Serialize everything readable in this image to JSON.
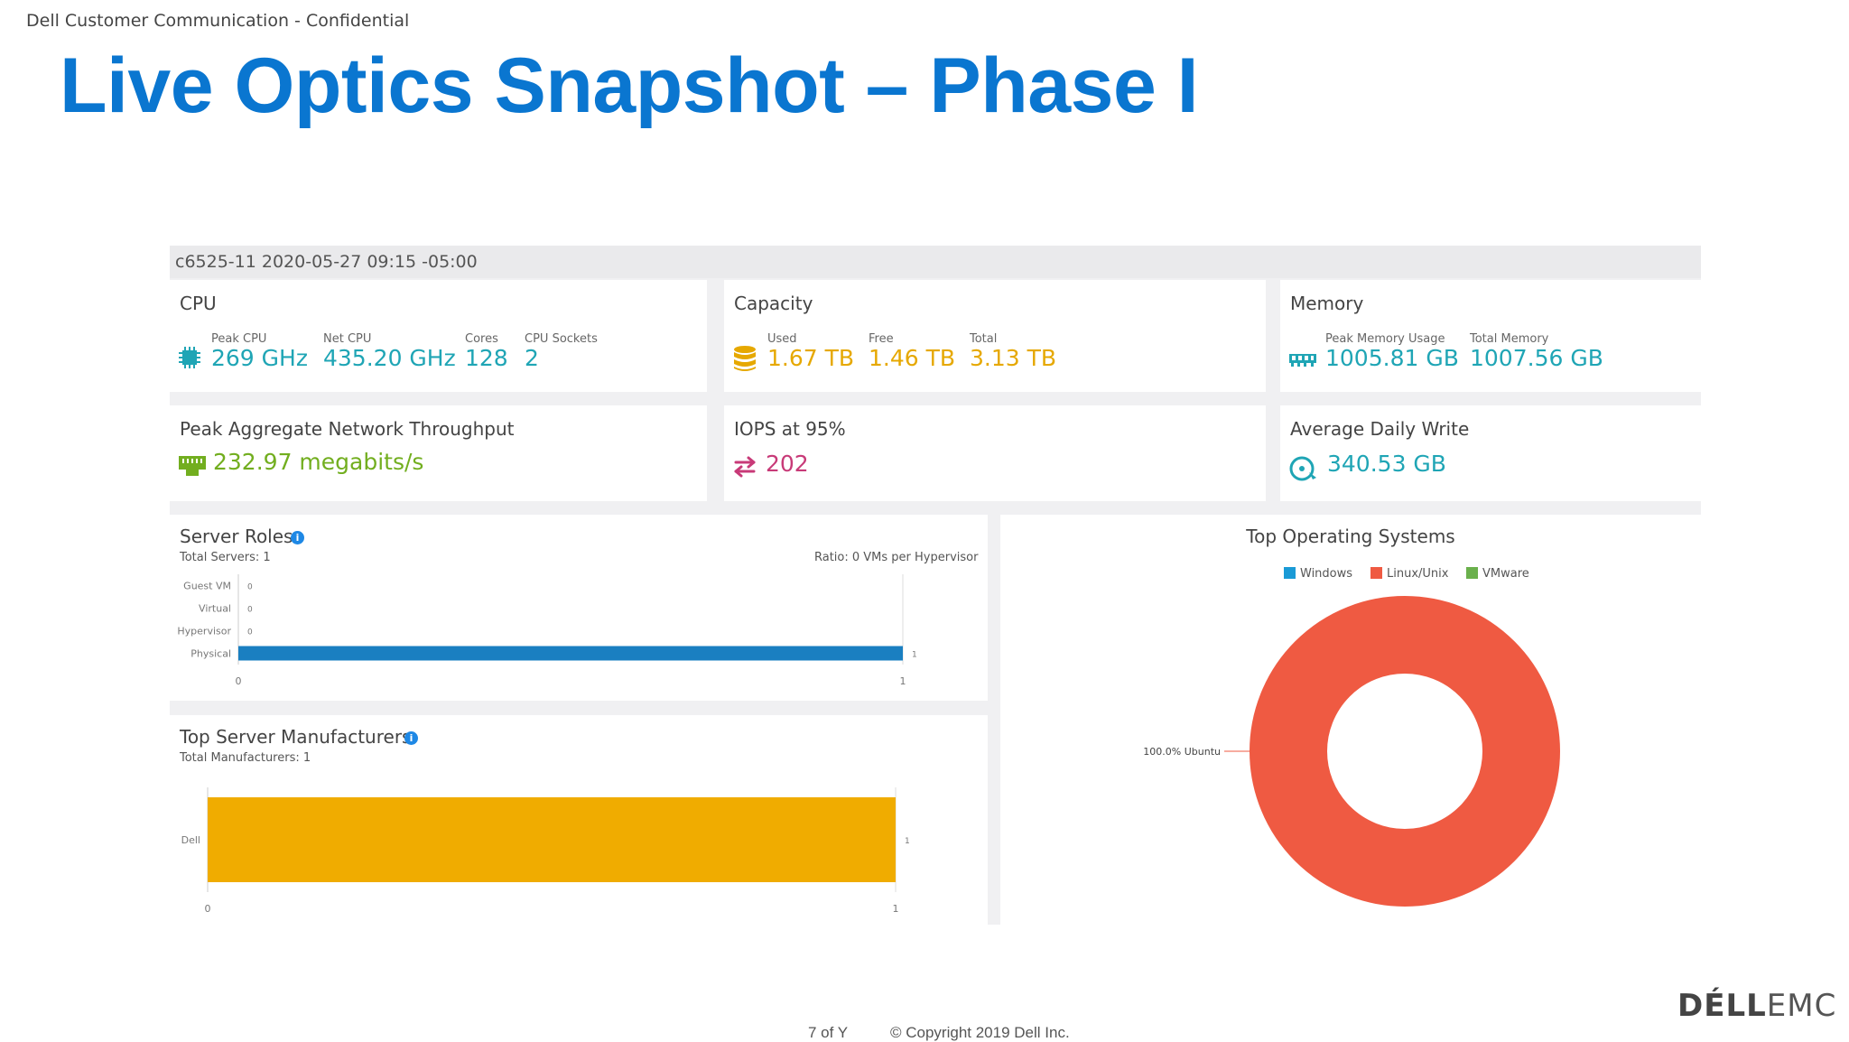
{
  "slide": {
    "confidential": "Dell Customer Communication - Confidential",
    "title": "Live Optics Snapshot – Phase I",
    "page": "7 of Y",
    "copyright": "© Copyright 2019 Dell Inc.",
    "logo_dell": "DÉLL",
    "logo_emc": "EMC"
  },
  "dashboard": {
    "header": "c6525-11 2020-05-27 09:15 -05:00",
    "cpu": {
      "title": "CPU",
      "icon": "cpu-chip-icon",
      "stats": [
        {
          "label": "Peak CPU",
          "value": "269 GHz"
        },
        {
          "label": "Net CPU",
          "value": "435.20 GHz"
        },
        {
          "label": "Cores",
          "value": "128"
        },
        {
          "label": "CPU Sockets",
          "value": "2"
        }
      ]
    },
    "capacity": {
      "title": "Capacity",
      "icon": "database-icon",
      "stats": [
        {
          "label": "Used",
          "value": "1.67 TB"
        },
        {
          "label": "Free",
          "value": "1.46 TB"
        },
        {
          "label": "Total",
          "value": "3.13 TB"
        }
      ]
    },
    "memory": {
      "title": "Memory",
      "icon": "memory-module-icon",
      "stats": [
        {
          "label": "Peak Memory Usage",
          "value": "1005.81 GB"
        },
        {
          "label": "Total Memory",
          "value": "1007.56 GB"
        }
      ]
    },
    "network": {
      "title": "Peak Aggregate Network Throughput",
      "value": "232.97 megabits/s",
      "icon": "network-port-icon"
    },
    "iops": {
      "title": "IOPS at 95%",
      "value": "202",
      "icon": "transfer-arrows-icon"
    },
    "daily_write": {
      "title": "Average Daily Write",
      "value": "340.53 GB",
      "icon": "disk-write-icon"
    },
    "server_roles": {
      "title": "Server Roles",
      "subtitle": "Total Servers: 1",
      "ratio": "Ratio: 0 VMs per Hypervisor",
      "info_icon": "i"
    },
    "manufacturers": {
      "title": "Top Server Manufacturers",
      "subtitle": "Total Manufacturers: 1",
      "info_icon": "i"
    },
    "os": {
      "title": "Top Operating Systems",
      "legend": [
        {
          "name": "Windows",
          "color": "#1a9ad6"
        },
        {
          "name": "Linux/Unix",
          "color": "#ef5a42"
        },
        {
          "name": "VMware",
          "color": "#6ab04c"
        }
      ]
    }
  },
  "chart_data": [
    {
      "type": "bar",
      "orientation": "horizontal",
      "categories": [
        "Guest VM",
        "Virtual",
        "Hypervisor",
        "Physical"
      ],
      "values": [
        0,
        0,
        0,
        1
      ],
      "color": "#1a7fc1",
      "xlim": [
        0,
        1
      ],
      "x_ticks": [
        "0",
        "1"
      ]
    },
    {
      "type": "bar",
      "orientation": "horizontal",
      "categories": [
        "Dell"
      ],
      "values": [
        1
      ],
      "color": "#f0ac00",
      "xlim": [
        0,
        1
      ],
      "x_ticks": [
        "0",
        "1"
      ]
    },
    {
      "type": "pie",
      "donut": true,
      "slices": [
        {
          "label": "Ubuntu",
          "value": 100.0,
          "display": "100.0% Ubuntu",
          "color": "#ef5a42"
        }
      ]
    }
  ]
}
